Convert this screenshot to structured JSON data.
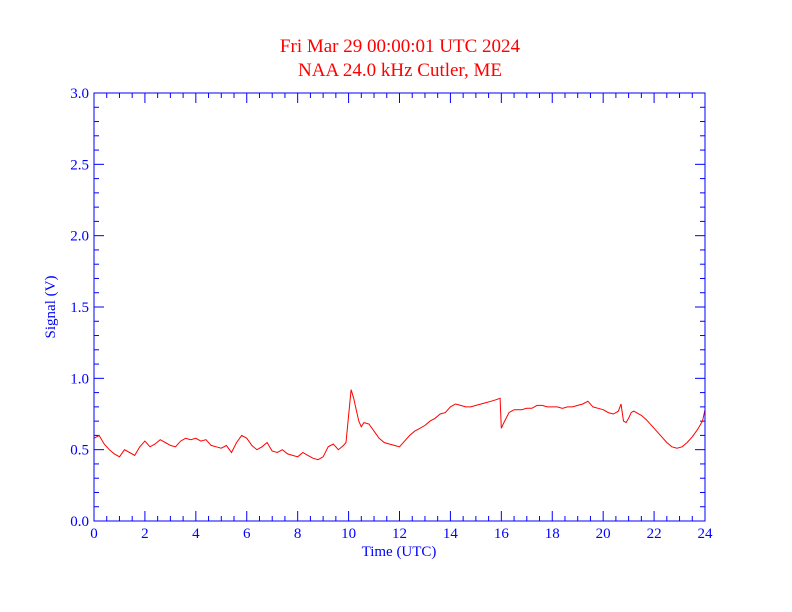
{
  "chart_data": {
    "type": "line",
    "title": "Fri Mar 29 00:00:01 UTC 2024",
    "subtitle": "NAA 24.0 kHz Cutler, ME",
    "xlabel": "Time (UTC)",
    "ylabel": "Signal (V)",
    "xlim": [
      0,
      24
    ],
    "ylim": [
      0,
      3.0
    ],
    "xticks": [
      0,
      2,
      4,
      6,
      8,
      10,
      12,
      14,
      16,
      18,
      20,
      22,
      24
    ],
    "yticks": [
      "0.0",
      "0.5",
      "1.0",
      "1.5",
      "2.0",
      "2.5",
      "3.0"
    ],
    "grid": false,
    "axis_color": "#0000ff",
    "series": [
      {
        "color": "#ff0000",
        "x": [
          0.0,
          0.2,
          0.4,
          0.6,
          0.8,
          1.0,
          1.2,
          1.4,
          1.6,
          1.8,
          2.0,
          2.2,
          2.4,
          2.6,
          2.8,
          3.0,
          3.2,
          3.4,
          3.6,
          3.8,
          4.0,
          4.2,
          4.4,
          4.6,
          4.8,
          5.0,
          5.2,
          5.4,
          5.6,
          5.8,
          6.0,
          6.2,
          6.4,
          6.6,
          6.8,
          7.0,
          7.2,
          7.4,
          7.6,
          7.8,
          8.0,
          8.2,
          8.4,
          8.6,
          8.8,
          9.0,
          9.2,
          9.4,
          9.6,
          9.8,
          9.9,
          10.0,
          10.1,
          10.2,
          10.3,
          10.4,
          10.5,
          10.6,
          10.8,
          11.0,
          11.2,
          11.4,
          11.6,
          11.8,
          12.0,
          12.2,
          12.4,
          12.6,
          12.8,
          13.0,
          13.2,
          13.4,
          13.6,
          13.8,
          14.0,
          14.2,
          14.4,
          14.6,
          14.8,
          15.0,
          15.2,
          15.4,
          15.6,
          15.8,
          15.95,
          16.0,
          16.1,
          16.3,
          16.5,
          16.8,
          17.0,
          17.2,
          17.4,
          17.6,
          17.8,
          18.0,
          18.2,
          18.4,
          18.6,
          18.8,
          19.0,
          19.2,
          19.4,
          19.6,
          19.8,
          20.0,
          20.2,
          20.4,
          20.6,
          20.7,
          20.8,
          20.9,
          21.0,
          21.1,
          21.2,
          21.3,
          21.5,
          21.7,
          21.9,
          22.1,
          22.3,
          22.5,
          22.7,
          22.9,
          23.1,
          23.3,
          23.5,
          23.7,
          23.9,
          24.0
        ],
        "y": [
          0.58,
          0.6,
          0.54,
          0.5,
          0.47,
          0.45,
          0.5,
          0.48,
          0.46,
          0.52,
          0.56,
          0.52,
          0.54,
          0.57,
          0.55,
          0.53,
          0.52,
          0.56,
          0.58,
          0.57,
          0.58,
          0.56,
          0.57,
          0.53,
          0.52,
          0.51,
          0.53,
          0.48,
          0.55,
          0.6,
          0.58,
          0.53,
          0.5,
          0.52,
          0.55,
          0.49,
          0.48,
          0.5,
          0.47,
          0.46,
          0.45,
          0.48,
          0.46,
          0.44,
          0.43,
          0.45,
          0.52,
          0.54,
          0.5,
          0.53,
          0.55,
          0.74,
          0.92,
          0.86,
          0.78,
          0.7,
          0.66,
          0.69,
          0.68,
          0.63,
          0.58,
          0.55,
          0.54,
          0.53,
          0.52,
          0.56,
          0.6,
          0.63,
          0.65,
          0.67,
          0.7,
          0.72,
          0.75,
          0.76,
          0.8,
          0.82,
          0.81,
          0.8,
          0.8,
          0.81,
          0.82,
          0.83,
          0.84,
          0.85,
          0.86,
          0.65,
          0.69,
          0.76,
          0.78,
          0.78,
          0.79,
          0.79,
          0.81,
          0.81,
          0.8,
          0.8,
          0.8,
          0.79,
          0.8,
          0.8,
          0.81,
          0.82,
          0.84,
          0.8,
          0.79,
          0.78,
          0.76,
          0.75,
          0.77,
          0.82,
          0.7,
          0.69,
          0.72,
          0.76,
          0.77,
          0.76,
          0.74,
          0.71,
          0.67,
          0.63,
          0.59,
          0.55,
          0.52,
          0.51,
          0.52,
          0.55,
          0.59,
          0.64,
          0.7,
          0.78
        ]
      }
    ]
  }
}
